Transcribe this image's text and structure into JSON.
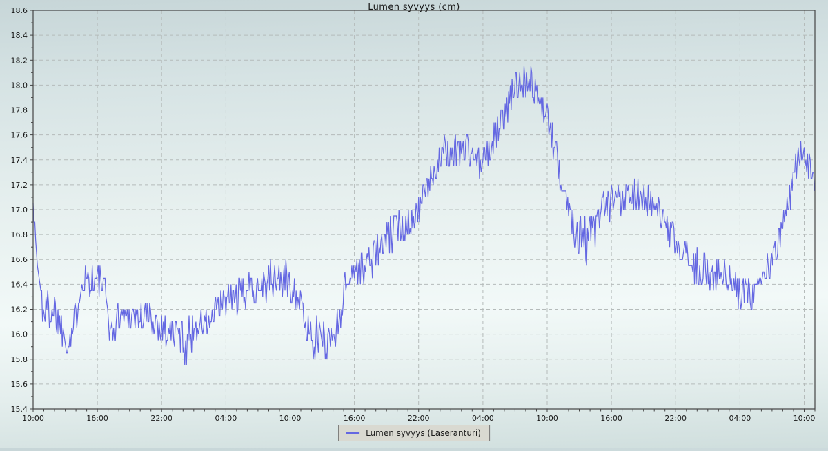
{
  "chart_data": {
    "type": "line",
    "title": "Lumen syvyys (cm)",
    "xlabel": "",
    "ylabel": "",
    "grid": true,
    "legend_position": "bottom-center",
    "ylim": [
      15.4,
      18.6
    ],
    "y_major_ticks": [
      15.4,
      15.6,
      15.8,
      16.0,
      16.2,
      16.4,
      16.6,
      16.8,
      17.0,
      17.2,
      17.4,
      17.6,
      17.8,
      18.0,
      18.2,
      18.4,
      18.6
    ],
    "y_minor_step": 0.1,
    "xlim_hours": [
      0,
      73
    ],
    "x_major_tick_hours": [
      0,
      6,
      12,
      18,
      24,
      30,
      36,
      42,
      48,
      54,
      60,
      66,
      72
    ],
    "x_tick_labels": [
      "10:00",
      "16:00",
      "22:00",
      "04:00",
      "10:00",
      "16:00",
      "22:00",
      "04:00",
      "10:00",
      "16:00",
      "22:00",
      "04:00",
      "10:00"
    ],
    "x_minor_step_hours": 1,
    "series": [
      {
        "name": "Lumen syvyys (Laseranturi)",
        "color": "#6467e2",
        "line_width": 1.2,
        "sample_step_hours": 0.08,
        "quantize_cm": 0.05,
        "noise_seed": 1337,
        "anchors_t_value_noise": [
          [
            0.0,
            17.05,
            0.03
          ],
          [
            0.35,
            16.6,
            0.1
          ],
          [
            0.9,
            16.2,
            0.18
          ],
          [
            2.0,
            16.2,
            0.17
          ],
          [
            2.9,
            16.0,
            0.15
          ],
          [
            3.5,
            15.97,
            0.16
          ],
          [
            4.1,
            16.18,
            0.15
          ],
          [
            4.4,
            16.45,
            0.18
          ],
          [
            5.3,
            16.45,
            0.15
          ],
          [
            6.5,
            16.4,
            0.16
          ],
          [
            7.1,
            16.12,
            0.14
          ],
          [
            7.4,
            15.97,
            0.16
          ],
          [
            8.0,
            16.15,
            0.13
          ],
          [
            9.5,
            16.15,
            0.14
          ],
          [
            11.0,
            16.12,
            0.14
          ],
          [
            12.2,
            16.04,
            0.14
          ],
          [
            13.6,
            16.0,
            0.13
          ],
          [
            14.3,
            15.93,
            0.2
          ],
          [
            15.2,
            16.08,
            0.12
          ],
          [
            16.6,
            16.1,
            0.13
          ],
          [
            17.6,
            16.24,
            0.14
          ],
          [
            19.0,
            16.3,
            0.15
          ],
          [
            20.5,
            16.38,
            0.15
          ],
          [
            22.0,
            16.42,
            0.17
          ],
          [
            23.3,
            16.45,
            0.19
          ],
          [
            24.6,
            16.35,
            0.15
          ],
          [
            25.3,
            16.1,
            0.15
          ],
          [
            26.2,
            15.97,
            0.17
          ],
          [
            27.6,
            15.95,
            0.15
          ],
          [
            28.3,
            16.02,
            0.19
          ],
          [
            28.9,
            16.3,
            0.15
          ],
          [
            29.6,
            16.5,
            0.13
          ],
          [
            31.0,
            16.55,
            0.15
          ],
          [
            32.6,
            16.7,
            0.15
          ],
          [
            34.0,
            16.85,
            0.15
          ],
          [
            35.6,
            16.95,
            0.13
          ],
          [
            36.6,
            17.12,
            0.13
          ],
          [
            37.6,
            17.35,
            0.13
          ],
          [
            38.6,
            17.45,
            0.15
          ],
          [
            40.0,
            17.5,
            0.15
          ],
          [
            41.0,
            17.45,
            0.14
          ],
          [
            41.9,
            17.35,
            0.13
          ],
          [
            42.8,
            17.52,
            0.13
          ],
          [
            43.8,
            17.7,
            0.13
          ],
          [
            44.8,
            17.95,
            0.13
          ],
          [
            45.6,
            18.05,
            0.14
          ],
          [
            46.1,
            18.1,
            0.18
          ],
          [
            46.6,
            18.0,
            0.13
          ],
          [
            47.4,
            17.85,
            0.12
          ],
          [
            48.1,
            17.72,
            0.1
          ],
          [
            48.6,
            17.5,
            0.14
          ],
          [
            49.4,
            17.25,
            0.15
          ],
          [
            50.3,
            16.92,
            0.2
          ],
          [
            51.5,
            16.75,
            0.22
          ],
          [
            52.6,
            16.85,
            0.18
          ],
          [
            53.5,
            17.0,
            0.22
          ],
          [
            54.6,
            17.1,
            0.15
          ],
          [
            56.0,
            17.15,
            0.15
          ],
          [
            57.6,
            17.05,
            0.15
          ],
          [
            58.9,
            16.9,
            0.13
          ],
          [
            60.1,
            16.7,
            0.13
          ],
          [
            61.6,
            16.55,
            0.15
          ],
          [
            63.1,
            16.5,
            0.15
          ],
          [
            64.6,
            16.45,
            0.16
          ],
          [
            66.0,
            16.3,
            0.18
          ],
          [
            67.1,
            16.35,
            0.15
          ],
          [
            68.1,
            16.45,
            0.13
          ],
          [
            69.1,
            16.6,
            0.13
          ],
          [
            70.0,
            16.85,
            0.13
          ],
          [
            70.8,
            17.15,
            0.13
          ],
          [
            71.4,
            17.45,
            0.13
          ],
          [
            71.9,
            17.5,
            0.15
          ],
          [
            72.4,
            17.35,
            0.12
          ],
          [
            73.0,
            17.2,
            0.1
          ]
        ]
      }
    ],
    "observed_extremes": {
      "min_cm": 15.7,
      "max_cm": 18.3
    }
  },
  "legend": {
    "label": "Lumen syvyys (Laseranturi)"
  },
  "colors": {
    "line": "#6467e2",
    "grid": "#b5bbba",
    "spine": "#444444",
    "legend_background": "#d9d9d1",
    "legend_border": "#767676"
  }
}
